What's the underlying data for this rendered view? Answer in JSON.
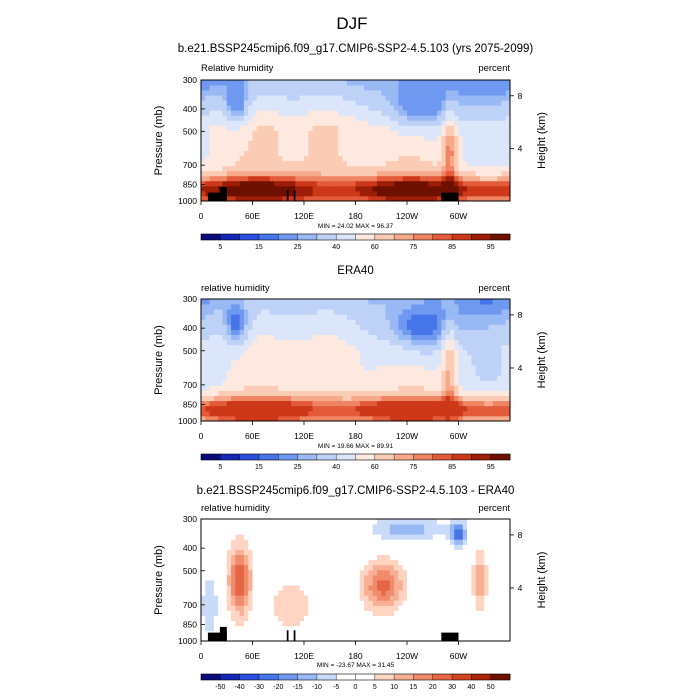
{
  "figure": {
    "title": "DJF"
  },
  "chart_data": [
    {
      "type": "heatmap",
      "title": "b.e21.BSSP245cmip6.f09_g17.CMIP6-SSP2-4.5.103 (yrs 2075-2099)",
      "left_label": "Relative humidity",
      "right_label": "percent",
      "ylabel": "Pressure (mb)",
      "ylabel_right": "Height (km)",
      "x_ticks": [
        "0",
        "60E",
        "120E",
        "180",
        "120W",
        "60W"
      ],
      "x_tick_lons": [
        0,
        60,
        120,
        180,
        240,
        300
      ],
      "xlim": [
        0,
        360
      ],
      "y_ticks": [
        "300",
        "400",
        "500",
        "700",
        "850",
        "1000"
      ],
      "y_tick_values": [
        300,
        400,
        500,
        700,
        850,
        1000
      ],
      "ylim": [
        1000,
        300
      ],
      "height_ticks": [
        "8",
        "4"
      ],
      "height_tick_km": [
        8,
        4
      ],
      "minmax_text": "MIN = 24.02  MAX = 96.37",
      "min": 24.02,
      "max": 96.37,
      "colorbar_labels": [
        "5",
        "15",
        "25",
        "40",
        "60",
        "75",
        "85",
        "95"
      ],
      "colorbar_levels": [
        5,
        10,
        15,
        20,
        25,
        30,
        40,
        50,
        60,
        70,
        75,
        80,
        85,
        90,
        95
      ]
    },
    {
      "type": "heatmap",
      "title": "ERA40",
      "left_label": "relative humidity",
      "right_label": "percent",
      "ylabel": "Pressure (mb)",
      "ylabel_right": "Height (km)",
      "x_ticks": [
        "0",
        "60E",
        "120E",
        "180",
        "120W",
        "60W"
      ],
      "x_tick_lons": [
        0,
        60,
        120,
        180,
        240,
        300
      ],
      "xlim": [
        0,
        360
      ],
      "y_ticks": [
        "300",
        "400",
        "500",
        "700",
        "850",
        "1000"
      ],
      "y_tick_values": [
        300,
        400,
        500,
        700,
        850,
        1000
      ],
      "ylim": [
        1000,
        300
      ],
      "height_ticks": [
        "8",
        "4"
      ],
      "height_tick_km": [
        8,
        4
      ],
      "minmax_text": "MIN = 19.66  MAX = 89.91",
      "min": 19.66,
      "max": 89.91,
      "colorbar_labels": [
        "5",
        "15",
        "25",
        "40",
        "60",
        "75",
        "85",
        "95"
      ],
      "colorbar_levels": [
        5,
        10,
        15,
        20,
        25,
        30,
        40,
        50,
        60,
        70,
        75,
        80,
        85,
        90,
        95
      ]
    },
    {
      "type": "heatmap",
      "title": "b.e21.BSSP245cmip6.f09_g17.CMIP6-SSP2-4.5.103 - ERA40",
      "left_label": "relative humidity",
      "right_label": "percent",
      "ylabel": "Pressure (mb)",
      "ylabel_right": "Height (km)",
      "x_ticks": [
        "0",
        "60E",
        "120E",
        "180",
        "120W",
        "60W"
      ],
      "x_tick_lons": [
        0,
        60,
        120,
        180,
        240,
        300
      ],
      "xlim": [
        0,
        360
      ],
      "y_ticks": [
        "300",
        "400",
        "500",
        "700",
        "850",
        "1000"
      ],
      "y_tick_values": [
        300,
        400,
        500,
        700,
        850,
        1000
      ],
      "ylim": [
        1000,
        300
      ],
      "height_ticks": [
        "8",
        "4"
      ],
      "height_tick_km": [
        8,
        4
      ],
      "minmax_text": "MIN = -23.67  MAX = 31.45",
      "min": -23.67,
      "max": 31.45,
      "colorbar_labels": [
        "-50",
        "-40",
        "-30",
        "-20",
        "-15",
        "-10",
        "-5",
        "0",
        "5",
        "10",
        "15",
        "20",
        "30",
        "40",
        "50"
      ],
      "colorbar_levels": [
        -50,
        -40,
        -30,
        -20,
        -15,
        -10,
        -5,
        0,
        5,
        10,
        15,
        20,
        30,
        40,
        50
      ]
    }
  ]
}
